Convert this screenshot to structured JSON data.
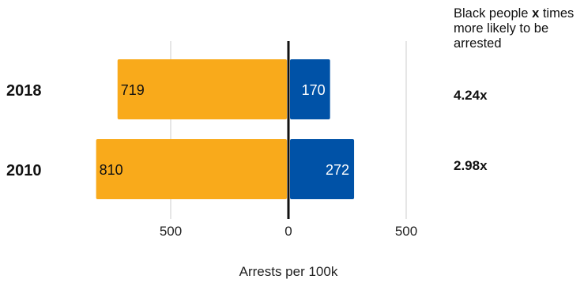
{
  "chart_data": {
    "type": "bar",
    "orientation": "horizontal",
    "categories": [
      "2018",
      "2010"
    ],
    "series": [
      {
        "values": [
          719,
          810
        ],
        "color": "#F9AA1B"
      },
      {
        "values": [
          170,
          272
        ],
        "color": "#0052A7"
      }
    ],
    "tick_labels": [
      "500",
      "0",
      "500"
    ],
    "xlabel": "Arrests per 100k",
    "xlim": [
      -1000,
      1000
    ],
    "grid": true,
    "annotation": {
      "header_pre": "Black people ",
      "header_bold": "x",
      "header_post": " times more likely to be arrested",
      "ratios": [
        "4.24x",
        "2.98x"
      ]
    }
  }
}
